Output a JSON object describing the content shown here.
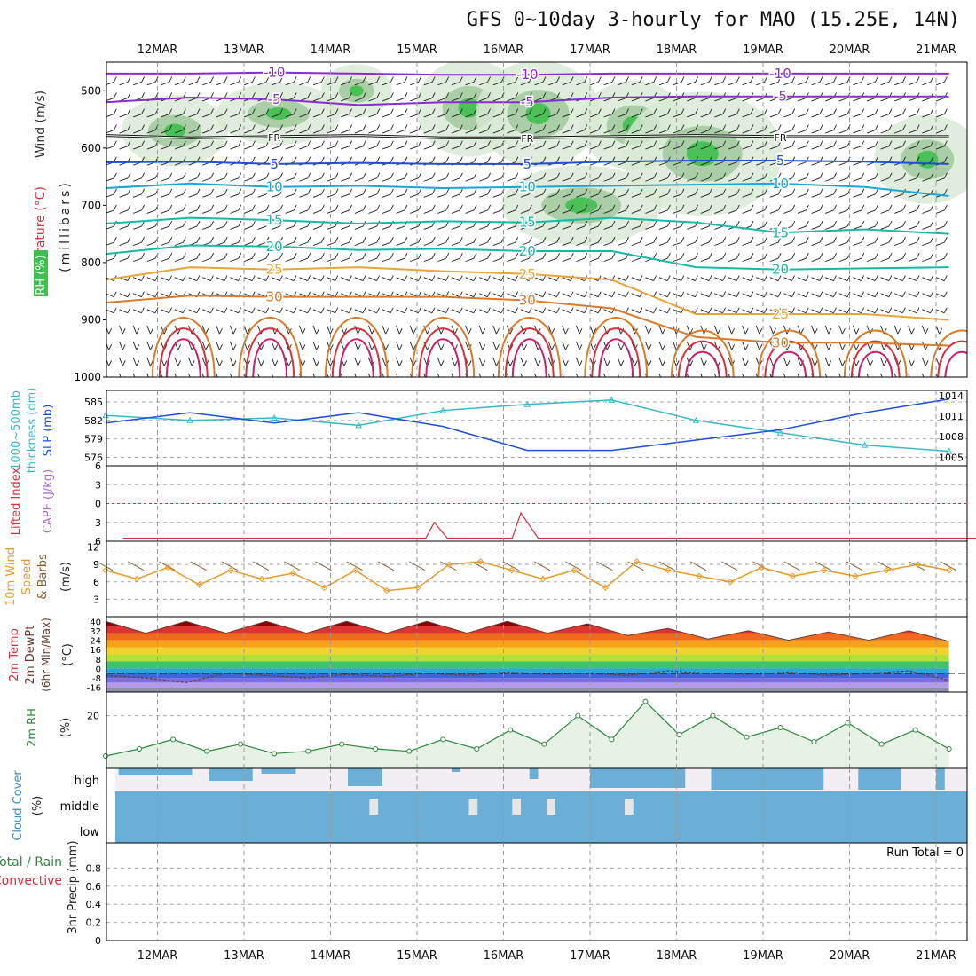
{
  "title": "GFS 0~10day 3-hourly for MAO (15.25E, 14N)",
  "dates": [
    "12MAR",
    "13MAR",
    "14MAR",
    "15MAR",
    "16MAR",
    "17MAR",
    "18MAR",
    "19MAR",
    "20MAR",
    "21MAR"
  ],
  "colors": {
    "purple": "#8a2bd0",
    "blue": "#1f4fd8",
    "cyan": "#1aa6d6",
    "teal": "#17b8a6",
    "orange": "#e8a33a",
    "darkorange": "#d97b2a",
    "red": "#d8303c",
    "magenta": "#c8206a",
    "green": "#2a8a3a",
    "rhfill": "#e6f2e6",
    "cloud": "#6baed6",
    "pink": "#a86ac9"
  },
  "labels": {
    "upper_axis": [
      "Wind (m/s)",
      "Temperature (°C)",
      "RH (%)",
      "(millibars)"
    ],
    "run_total": "Run Total = 0",
    "cloud_levels": [
      "high",
      "middle",
      "low"
    ],
    "panel_titles": {
      "thickness": [
        "1000~500mb",
        "thickness (dm)",
        "SLP (mb)"
      ],
      "cape": [
        "Lifted Index",
        "CAPE (J/kg)"
      ],
      "wind10": [
        "10m Wind",
        "Speed",
        "& Barbs",
        "(m/s)"
      ],
      "temp2m": [
        "2m Temp",
        "2m DewPt",
        "(6hr Min/Max)",
        "(°C)"
      ],
      "rh2m": [
        "2m RH",
        "(%)"
      ],
      "cloud": [
        "Cloud Cover",
        "(%)"
      ],
      "precip": [
        "Total / Rain",
        "Convective",
        "3hr Precip (mm)"
      ]
    }
  },
  "chart_data": [
    {
      "panel": "upper-air cross section",
      "type": "heatmap",
      "title": "Wind (m/s) / Temperature (°C) / RH (%)",
      "ylabel": "millibars",
      "yticks": [
        500,
        600,
        700,
        800,
        900,
        1000
      ],
      "ylim": [
        450,
        1000
      ],
      "rh_shading_levels": [
        30,
        50,
        70,
        90
      ],
      "isotherms": [
        {
          "label": "-10",
          "pressure": [
            470,
            470,
            468,
            470,
            472,
            472,
            470,
            470,
            470,
            470,
            470
          ]
        },
        {
          "label": "-5",
          "pressure": [
            520,
            512,
            515,
            525,
            520,
            520,
            512,
            510,
            510,
            510,
            510
          ]
        },
        {
          "label": "FR",
          "pressure": [
            578,
            582,
            580,
            578,
            582,
            582,
            580,
            578,
            580,
            580,
            580
          ]
        },
        {
          "label": "5",
          "pressure": [
            625,
            624,
            628,
            626,
            628,
            628,
            624,
            622,
            622,
            624,
            628
          ]
        },
        {
          "label": "10",
          "pressure": [
            670,
            662,
            668,
            666,
            670,
            668,
            666,
            664,
            662,
            668,
            684
          ]
        },
        {
          "label": "15",
          "pressure": [
            732,
            722,
            726,
            732,
            728,
            730,
            722,
            730,
            748,
            742,
            750
          ]
        },
        {
          "label": "20",
          "pressure": [
            785,
            770,
            772,
            778,
            776,
            780,
            780,
            808,
            812,
            810,
            808
          ]
        },
        {
          "label": "25",
          "pressure": [
            830,
            808,
            812,
            808,
            815,
            820,
            830,
            890,
            890,
            890,
            900
          ]
        },
        {
          "label": "30",
          "pressure": [
            870,
            858,
            860,
            860,
            860,
            866,
            880,
            930,
            940,
            940,
            945
          ]
        }
      ]
    },
    {
      "panel": "thickness-slp",
      "type": "line",
      "x_days": [
        0,
        1,
        2,
        3,
        4,
        5,
        6,
        7,
        8,
        9,
        10
      ],
      "series": [
        {
          "name": "1000~500mb thickness (dm)",
          "axis": "left",
          "yticks": [
            576,
            579,
            582,
            585
          ],
          "values": [
            582.8,
            582.0,
            582.4,
            581.2,
            583.6,
            584.6,
            585.3,
            582.0,
            580.0,
            578.0,
            577.0
          ]
        },
        {
          "name": "SLP (mb)",
          "axis": "right",
          "yticks": [
            1005,
            1008,
            1011,
            1014
          ],
          "values": [
            1010,
            1011.5,
            1010,
            1011.5,
            1009.5,
            1006,
            1006,
            1007.5,
            1009,
            1011.5,
            1013.5
          ]
        }
      ]
    },
    {
      "panel": "cape-lifted-index",
      "type": "line",
      "yticks": [
        -6,
        -3,
        0,
        3,
        6
      ],
      "ylim": [
        -6,
        6
      ],
      "series": [
        {
          "name": "Lifted Index",
          "values": [
            {
              "x": 0,
              "y": 5.5
            },
            {
              "x": 3.5,
              "y": 5.5
            },
            {
              "x": 3.6,
              "y": 3.0
            },
            {
              "x": 3.75,
              "y": 5.5
            },
            {
              "x": 4.5,
              "y": 5.5
            },
            {
              "x": 4.6,
              "y": 1.5
            },
            {
              "x": 4.8,
              "y": 5.5
            },
            {
              "x": 10,
              "y": 5.5
            }
          ]
        }
      ]
    },
    {
      "panel": "10m-wind",
      "type": "line",
      "ylabel": "m/s",
      "yticks": [
        3,
        6,
        9,
        12
      ],
      "ylim": [
        0,
        13
      ],
      "series": [
        {
          "name": "10m Wind Speed",
          "values": [
            8,
            6.5,
            8.5,
            5.5,
            8,
            6.5,
            7.5,
            5,
            8,
            4.5,
            5,
            9,
            9.5,
            8,
            6.5,
            8,
            5,
            9.5,
            8,
            7,
            6,
            8.5,
            7,
            8,
            7,
            8,
            9,
            8
          ]
        }
      ]
    },
    {
      "panel": "2m-temp",
      "type": "area",
      "ylabel": "°C",
      "yticks": [
        -16,
        -8,
        0,
        8,
        16,
        24,
        32,
        40
      ],
      "ylim": [
        -20,
        44
      ],
      "series": [
        {
          "name": "2m Temp",
          "values": [
            40,
            30,
            40,
            30,
            40,
            30,
            40,
            30,
            40,
            30,
            40,
            30,
            38,
            28,
            34,
            25,
            32,
            24,
            31,
            24,
            32,
            23
          ]
        },
        {
          "name": "2m DewPt",
          "values": [
            -6,
            -8,
            -12,
            -4,
            -6,
            -8,
            -5,
            -7,
            -4,
            -6,
            -3,
            -5,
            -4,
            -6,
            -2,
            -4,
            -5,
            -3,
            -6,
            -4,
            -2,
            -10
          ]
        }
      ]
    },
    {
      "panel": "2m-rh",
      "type": "area",
      "ylabel": "%",
      "yticks": [
        20
      ],
      "ylim": [
        0,
        30
      ],
      "series": [
        {
          "name": "2m RH",
          "values": [
            3,
            6,
            10,
            5,
            8,
            4,
            5,
            8,
            6,
            5,
            10,
            6,
            14,
            8,
            20,
            10,
            26,
            12,
            20,
            11,
            15,
            9,
            17,
            8,
            14,
            6
          ]
        }
      ]
    },
    {
      "panel": "cloud-cover",
      "type": "bar",
      "ylabel": "%",
      "categories": [
        "high",
        "middle",
        "low"
      ],
      "series": [
        {
          "name": "low",
          "coverage": "near-continuous full coverage"
        },
        {
          "name": "middle",
          "coverage": "mostly full, small gaps 14MAR-18MAR"
        },
        {
          "name": "high",
          "coverage": "intermittent, heavier 17MAR-21MAR"
        }
      ]
    },
    {
      "panel": "3hr-precip",
      "type": "bar",
      "ylabel": "3hr Precip (mm)",
      "yticks": [
        0,
        0.2,
        0.4,
        0.6,
        0.8
      ],
      "ylim": [
        0,
        1
      ],
      "run_total": 0,
      "values": []
    }
  ]
}
